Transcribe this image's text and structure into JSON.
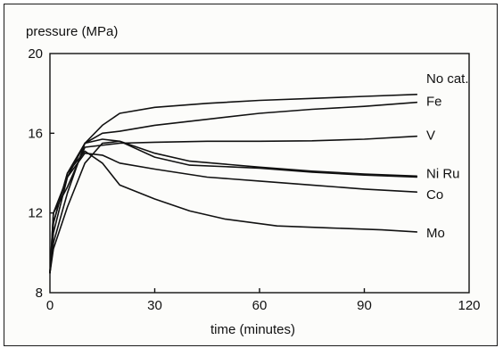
{
  "chart_data": {
    "type": "line",
    "ylabel": "pressure (MPa)",
    "xlabel": "time (minutes)",
    "xlim": [
      0,
      120
    ],
    "ylim": [
      8,
      20
    ],
    "xticks": [
      0,
      30,
      60,
      90,
      120
    ],
    "yticks": [
      8,
      12,
      16,
      20
    ],
    "grid": false,
    "series": [
      {
        "name": "No cat.",
        "x": [
          0,
          1,
          5,
          10,
          15,
          20,
          30,
          45,
          60,
          75,
          90,
          105
        ],
        "y": [
          9.0,
          11.5,
          14.0,
          15.5,
          16.4,
          17.0,
          17.3,
          17.5,
          17.65,
          17.75,
          17.85,
          17.95
        ]
      },
      {
        "name": "Fe",
        "x": [
          0,
          1,
          5,
          10,
          15,
          20,
          30,
          45,
          60,
          75,
          90,
          105
        ],
        "y": [
          9.0,
          11.0,
          13.8,
          15.5,
          16.0,
          16.1,
          16.4,
          16.7,
          17.0,
          17.2,
          17.35,
          17.55
        ]
      },
      {
        "name": "V",
        "x": [
          0,
          1,
          5,
          10,
          20,
          30,
          45,
          60,
          75,
          90,
          105
        ],
        "y": [
          9.0,
          12.0,
          13.3,
          15.3,
          15.5,
          15.55,
          15.6,
          15.6,
          15.62,
          15.7,
          15.85
        ]
      },
      {
        "name": "Ni",
        "x": [
          0,
          1,
          5,
          10,
          15,
          20,
          30,
          40,
          60,
          75,
          90,
          105
        ],
        "y": [
          9.0,
          10.5,
          13.0,
          15.5,
          15.7,
          15.6,
          15.0,
          14.6,
          14.3,
          14.1,
          13.95,
          13.85
        ]
      },
      {
        "name": "Ru",
        "x": [
          0,
          1,
          5,
          10,
          15,
          20,
          30,
          40,
          60,
          75,
          90,
          105
        ],
        "y": [
          9.0,
          10.2,
          12.3,
          14.5,
          15.5,
          15.6,
          14.8,
          14.4,
          14.25,
          14.05,
          13.9,
          13.8
        ]
      },
      {
        "name": "Co",
        "x": [
          0,
          1,
          5,
          10,
          15,
          20,
          30,
          45,
          60,
          75,
          90,
          105
        ],
        "y": [
          9.0,
          12.0,
          13.8,
          15.0,
          14.9,
          14.5,
          14.2,
          13.8,
          13.6,
          13.4,
          13.2,
          13.05
        ]
      },
      {
        "name": "Mo",
        "x": [
          0,
          1,
          5,
          10,
          15,
          20,
          30,
          40,
          50,
          65,
          80,
          95,
          105
        ],
        "y": [
          9.0,
          11.5,
          14.0,
          15.1,
          14.5,
          13.4,
          12.7,
          12.1,
          11.7,
          11.35,
          11.25,
          11.15,
          11.05
        ]
      }
    ],
    "series_labels": [
      "No cat.",
      "Fe",
      "V",
      "Ni  Ru",
      "Co",
      "Mo"
    ]
  }
}
